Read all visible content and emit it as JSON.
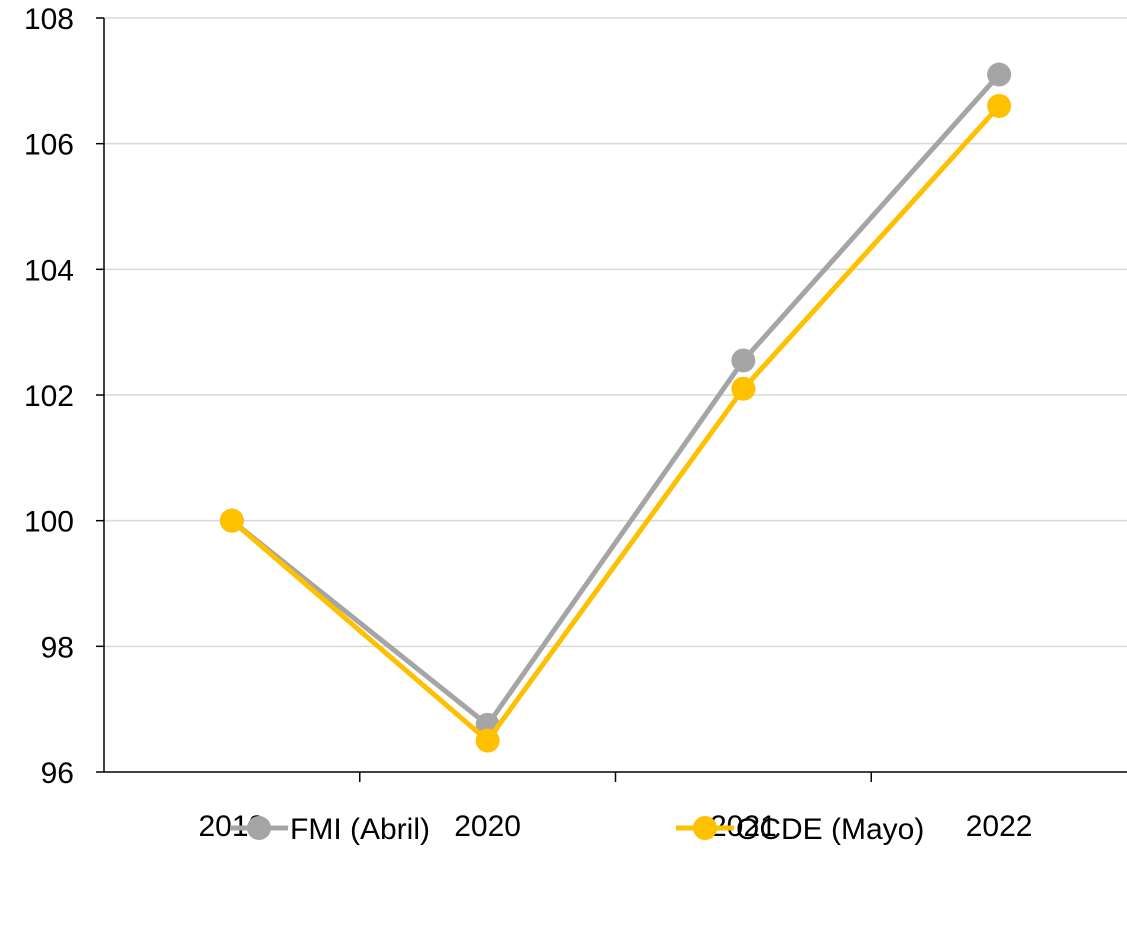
{
  "chart_data": {
    "type": "line",
    "title": "",
    "xlabel": "",
    "ylabel": "",
    "categories": [
      "2019",
      "2020",
      "2021",
      "2022"
    ],
    "ylim": [
      96,
      108
    ],
    "yticks": [
      96,
      98,
      100,
      102,
      104,
      106,
      108
    ],
    "grid": "horizontal",
    "legend_position": "bottom",
    "series": [
      {
        "name": "FMI (Abril)",
        "color": "#A5A5A5",
        "values": [
          100.0,
          96.75,
          102.55,
          107.1
        ]
      },
      {
        "name": "OCDE (Mayo)",
        "color": "#FFC000",
        "values": [
          100.0,
          96.5,
          102.1,
          106.6
        ]
      }
    ]
  }
}
